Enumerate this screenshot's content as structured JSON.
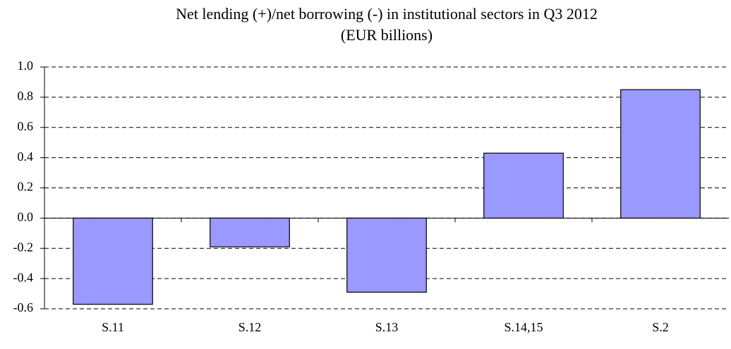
{
  "chart_data": {
    "type": "bar",
    "title": "Net lending (+)/net borrowing (-) in institutional sectors in Q3 2012",
    "subtitle": "(EUR billions)",
    "categories": [
      "S.11",
      "S.12",
      "S.13",
      "S.14,15",
      "S.2"
    ],
    "values": [
      -0.57,
      -0.19,
      -0.49,
      0.43,
      0.85
    ],
    "color": "#9999ff",
    "ylim": [
      -0.6,
      1
    ],
    "yticks": [
      {
        "value": 1,
        "label": "1.0"
      },
      0.8,
      0.6,
      0.4,
      0.2,
      {
        "value": 0,
        "label": "0.0"
      },
      -0.2,
      -0.4,
      -0.6
    ],
    "grid": true
  }
}
